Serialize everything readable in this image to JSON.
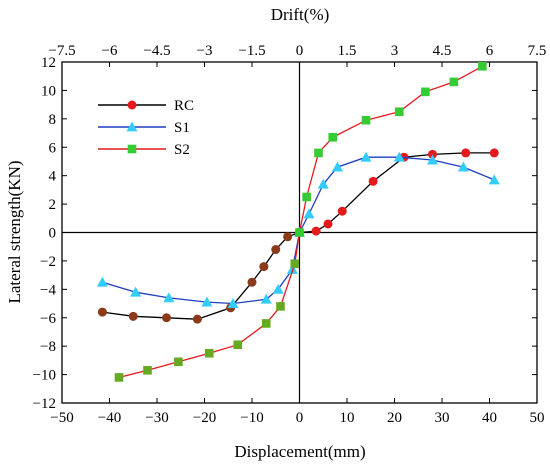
{
  "chart_data": {
    "type": "line",
    "xlabel": "Displacement(mm)",
    "ylabel": "Lateral strength(KN)",
    "top_axis_label": "Drift(%)",
    "xlim": [
      -50,
      50
    ],
    "ylim": [
      -12,
      12
    ],
    "top_xlim": [
      -7.5,
      7.5
    ],
    "x_ticks": [
      -50,
      -40,
      -30,
      -20,
      -10,
      0,
      10,
      20,
      30,
      40,
      50
    ],
    "y_ticks": [
      -12,
      -10,
      -8,
      -6,
      -4,
      -2,
      0,
      2,
      4,
      6,
      8,
      10,
      12
    ],
    "top_ticks": [
      -7.5,
      -6,
      -4.5,
      -3,
      -1.5,
      0,
      1.5,
      3,
      4.5,
      6,
      7.5
    ],
    "grid": false,
    "zero_lines": true,
    "legend_position": "upper-left",
    "series": [
      {
        "name": "RC",
        "color": "#000000",
        "marker": "circle",
        "marker_color_positive": "#e41a1c",
        "marker_color_negative": "#8b3a1a",
        "x": [
          -41.5,
          -35,
          -28,
          -21.5,
          -14.5,
          -10,
          -7.5,
          -5,
          -2.5,
          0,
          3.5,
          6,
          9,
          15.5,
          22,
          28,
          35,
          41
        ],
        "y": [
          -5.6,
          -5.9,
          -6.0,
          -6.1,
          -5.3,
          -3.5,
          -2.4,
          -1.2,
          -0.3,
          0,
          0.1,
          0.6,
          1.5,
          3.6,
          5.3,
          5.5,
          5.6,
          5.6
        ]
      },
      {
        "name": "S1",
        "color": "#1f3fbf",
        "marker": "triangle",
        "marker_color": "#33ccff",
        "x": [
          -41.5,
          -34.5,
          -27.5,
          -19.5,
          -14,
          -7,
          -4.5,
          -1.5,
          0,
          2,
          5,
          8,
          14,
          21,
          28,
          34.5,
          41
        ],
        "y": [
          -3.5,
          -4.2,
          -4.6,
          -4.9,
          -5.0,
          -4.7,
          -4.0,
          -2.6,
          0,
          1.3,
          3.4,
          4.6,
          5.3,
          5.3,
          5.1,
          4.6,
          3.7
        ]
      },
      {
        "name": "S2",
        "color": "#e41a1c",
        "marker": "square",
        "marker_color_positive": "#33cc33",
        "marker_color_negative": "#66aa22",
        "x": [
          -38,
          -32,
          -25.5,
          -19,
          -13,
          -7,
          -4,
          -1,
          0,
          1.5,
          4,
          7,
          14,
          21,
          26.5,
          32.5,
          38.5
        ],
        "y": [
          -10.2,
          -9.7,
          -9.1,
          -8.5,
          -7.9,
          -6.4,
          -5.2,
          -2.2,
          0,
          2.5,
          5.6,
          6.7,
          7.9,
          8.5,
          9.9,
          10.6,
          11.7
        ]
      }
    ]
  }
}
